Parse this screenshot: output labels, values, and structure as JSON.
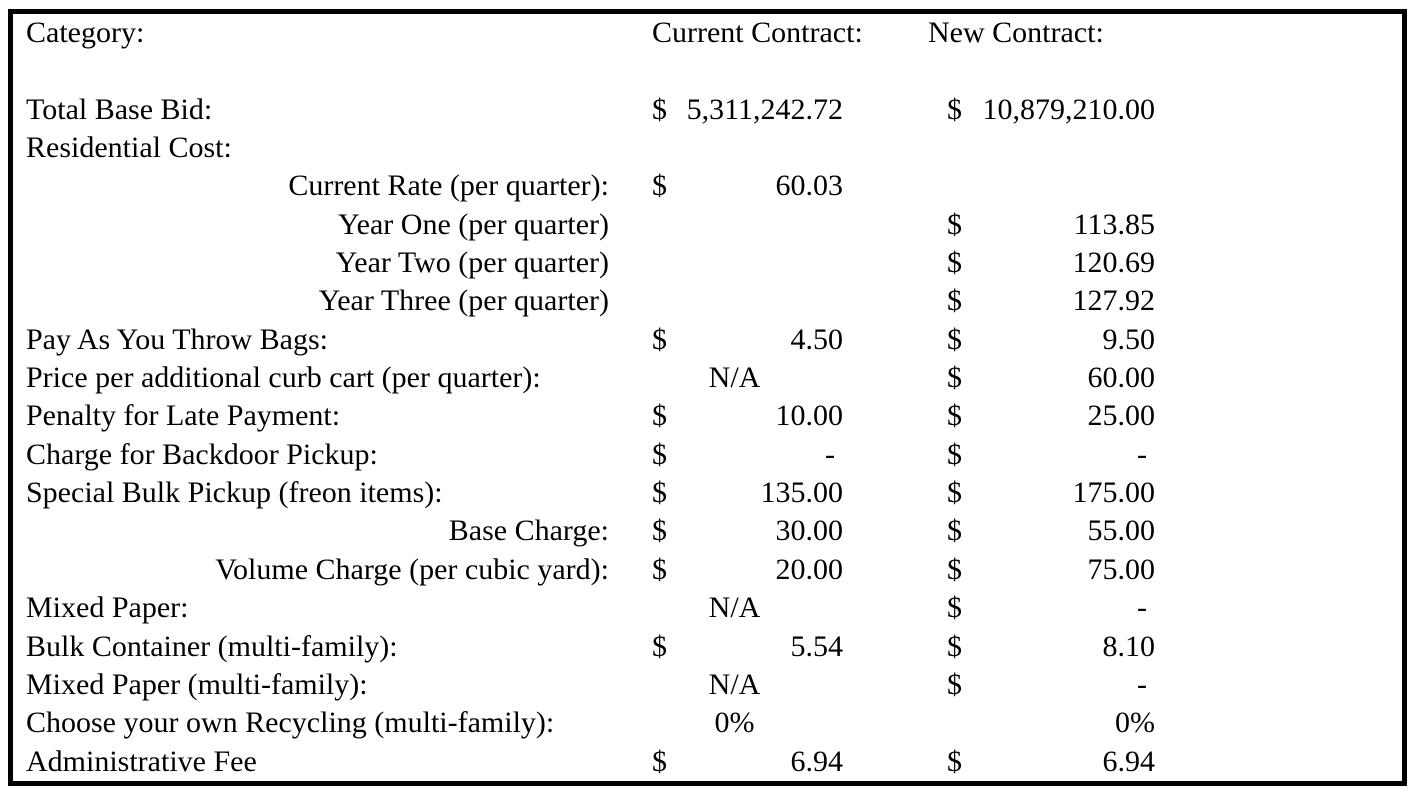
{
  "table": {
    "header": {
      "category": "Category:",
      "current_contract": "Current Contract:",
      "new_contract": "New Contract:"
    },
    "rows": [
      {
        "label": "Total Base Bid:",
        "cur_dollar": "$",
        "cur_value": "5,311,242.72",
        "new_dollar": "$",
        "new_value": "10,879,210.00"
      },
      {
        "label": "Residential Cost:"
      },
      {
        "label": "Current Rate (per quarter):",
        "indent": true,
        "cur_dollar": "$",
        "cur_value": "60.03"
      },
      {
        "label": "Year One (per quarter)",
        "indent": true,
        "new_dollar": "$",
        "new_value": "113.85"
      },
      {
        "label": "Year Two (per quarter)",
        "indent": true,
        "new_dollar": "$",
        "new_value": "120.69"
      },
      {
        "label": "Year Three (per quarter)",
        "indent": true,
        "new_dollar": "$",
        "new_value": "127.92"
      },
      {
        "label": "Pay As You Throw Bags:",
        "cur_dollar": "$",
        "cur_value": "4.50",
        "new_dollar": "$",
        "new_value": "9.50"
      },
      {
        "label": "Price per additional curb cart (per quarter):",
        "cur_text": "N/A",
        "new_dollar": "$",
        "new_value": "60.00"
      },
      {
        "label": "Penalty for Late Payment:",
        "cur_dollar": "$",
        "cur_value": "10.00",
        "new_dollar": "$",
        "new_value": "25.00"
      },
      {
        "label": "Charge for Backdoor Pickup:",
        "cur_dollar": "$",
        "cur_value": "-",
        "new_dollar": "$",
        "new_value": "-"
      },
      {
        "label": "Special Bulk Pickup (freon items):",
        "cur_dollar": "$",
        "cur_value": "135.00",
        "new_dollar": "$",
        "new_value": "175.00"
      },
      {
        "label": "Base Charge:",
        "indent": true,
        "cur_dollar": "$",
        "cur_value": "30.00",
        "new_dollar": "$",
        "new_value": "55.00"
      },
      {
        "label": "Volume Charge (per cubic yard):",
        "indent": true,
        "cur_dollar": "$",
        "cur_value": "20.00",
        "new_dollar": "$",
        "new_value": "75.00"
      },
      {
        "label": "Mixed Paper:",
        "cur_text": "N/A",
        "new_dollar": "$",
        "new_value": "-"
      },
      {
        "label": "Bulk Container (multi-family):",
        "cur_dollar": "$",
        "cur_value": "5.54",
        "new_dollar": "$",
        "new_value": "8.10"
      },
      {
        "label": "Mixed Paper (multi-family):",
        "cur_text": "N/A",
        "new_dollar": "$",
        "new_value": "-"
      },
      {
        "label": "Choose your own Recycling (multi-family):",
        "cur_text": "0%",
        "new_value": "0%"
      },
      {
        "label": "Administrative Fee",
        "cur_dollar": "$",
        "cur_value": "6.94",
        "new_dollar": "$",
        "new_value": "6.94"
      }
    ]
  }
}
